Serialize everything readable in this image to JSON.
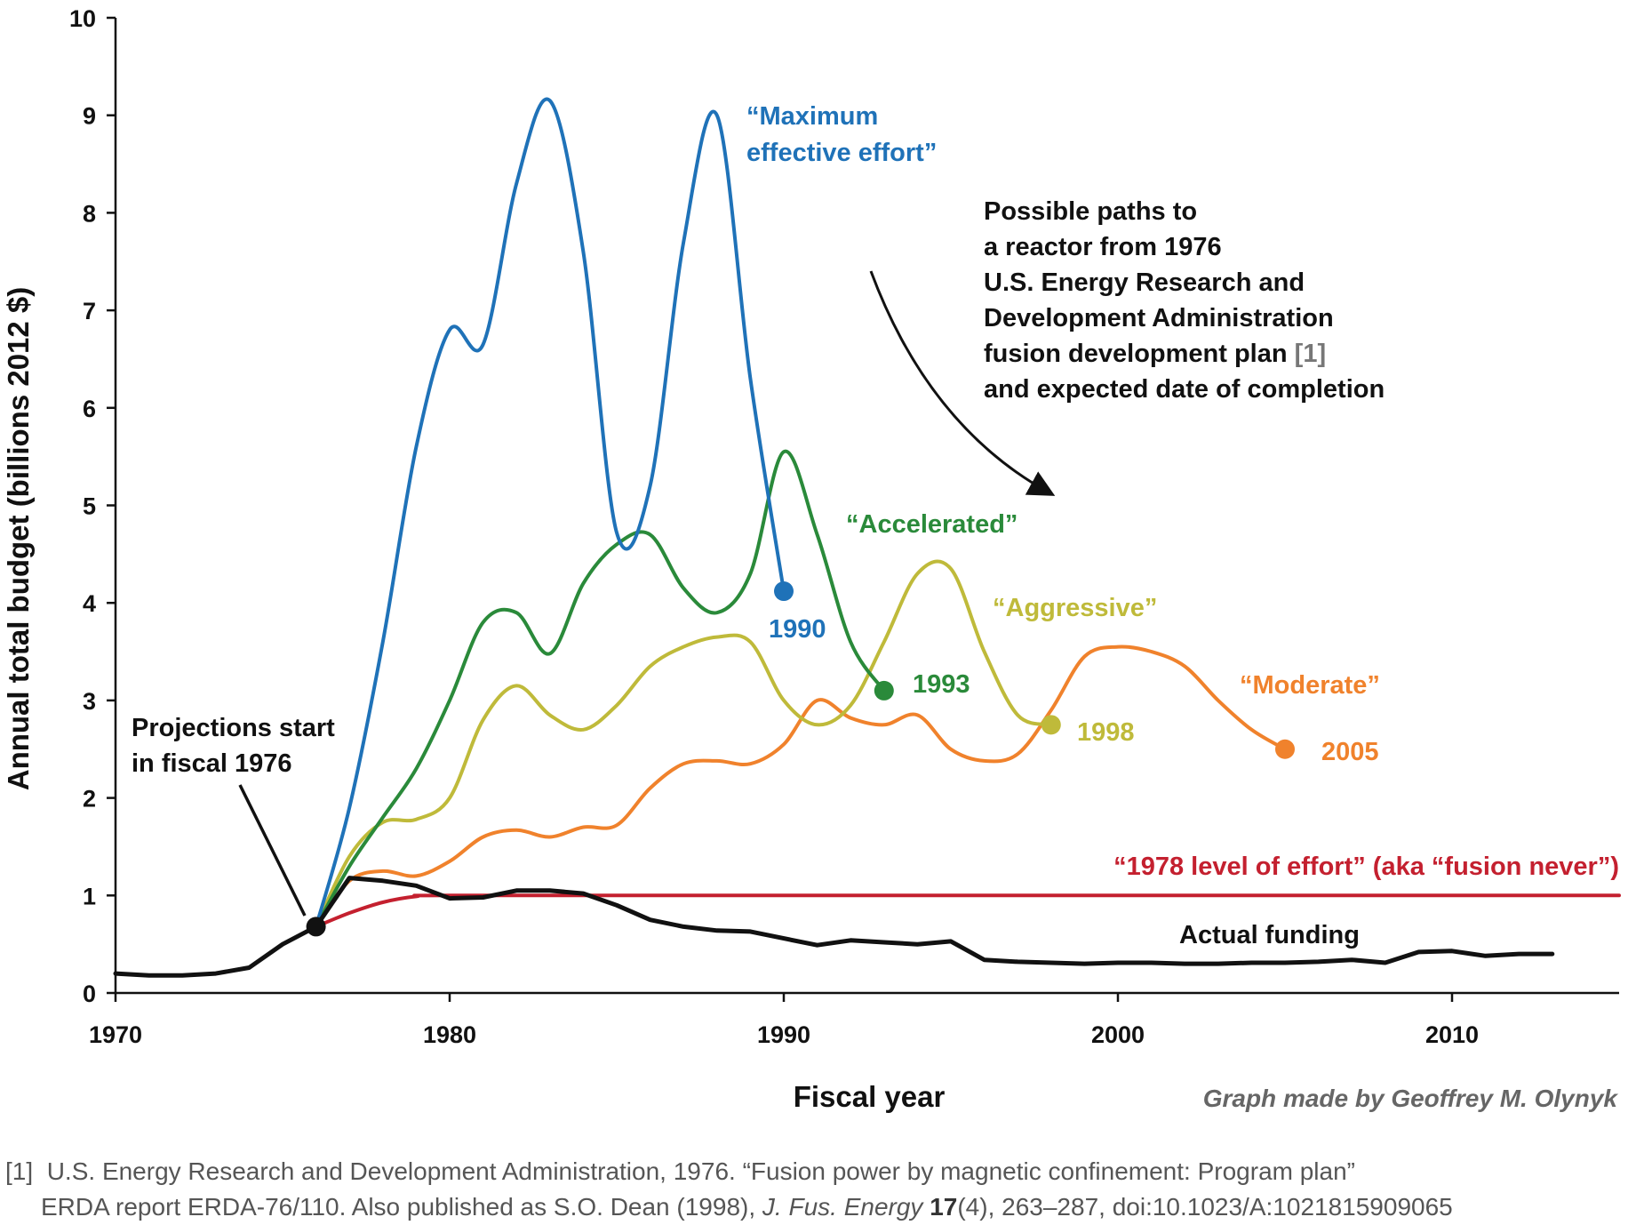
{
  "chart_data": {
    "type": "line",
    "xlabel": "Fiscal year",
    "ylabel": "Annual total budget (billions 2012 $)",
    "xlim": [
      1970,
      2015
    ],
    "ylim": [
      0,
      10
    ],
    "xticks": [
      1970,
      1980,
      1990,
      2000,
      2010
    ],
    "yticks": [
      0,
      1,
      2,
      3,
      4,
      5,
      6,
      7,
      8,
      9,
      10
    ],
    "grid": false,
    "legend": "none (series labelled directly on the chart)",
    "series": [
      {
        "name": "“Maximum effective effort”",
        "color": "#1f72b8",
        "end_label": "1990",
        "x": [
          1976,
          1977,
          1978,
          1979,
          1980,
          1981,
          1982,
          1983,
          1984,
          1985,
          1986,
          1987,
          1988,
          1989,
          1990
        ],
        "y": [
          0.68,
          1.9,
          3.6,
          5.6,
          6.8,
          6.65,
          8.3,
          9.15,
          7.6,
          4.72,
          5.2,
          7.7,
          9.0,
          6.3,
          4.12
        ]
      },
      {
        "name": "“Accelerated”",
        "color": "#2a8a3a",
        "end_label": "1993",
        "x": [
          1976,
          1977,
          1978,
          1979,
          1980,
          1981,
          1982,
          1983,
          1984,
          1985,
          1986,
          1987,
          1988,
          1989,
          1990,
          1991,
          1992,
          1993
        ],
        "y": [
          0.68,
          1.3,
          1.8,
          2.3,
          3.0,
          3.8,
          3.9,
          3.48,
          4.2,
          4.6,
          4.7,
          4.15,
          3.9,
          4.3,
          5.55,
          4.7,
          3.6,
          3.1
        ]
      },
      {
        "name": "“Aggressive”",
        "color": "#bfba3a",
        "end_label": "1998",
        "x": [
          1976,
          1977,
          1978,
          1979,
          1980,
          1981,
          1982,
          1983,
          1984,
          1985,
          1986,
          1987,
          1988,
          1989,
          1990,
          1991,
          1992,
          1993,
          1994,
          1995,
          1996,
          1997,
          1998
        ],
        "y": [
          0.68,
          1.4,
          1.75,
          1.78,
          2.0,
          2.8,
          3.15,
          2.85,
          2.7,
          2.95,
          3.35,
          3.55,
          3.65,
          3.6,
          3.0,
          2.75,
          2.95,
          3.6,
          4.3,
          4.35,
          3.5,
          2.85,
          2.75
        ]
      },
      {
        "name": "“Moderate”",
        "color": "#f0822c",
        "end_label": "2005",
        "x": [
          1976,
          1977,
          1978,
          1979,
          1980,
          1981,
          1982,
          1983,
          1984,
          1985,
          1986,
          1987,
          1988,
          1989,
          1990,
          1991,
          1992,
          1993,
          1994,
          1995,
          1996,
          1997,
          1998,
          1999,
          2000,
          2001,
          2002,
          2003,
          2004,
          2005
        ],
        "y": [
          0.68,
          1.15,
          1.25,
          1.2,
          1.35,
          1.6,
          1.67,
          1.6,
          1.7,
          1.72,
          2.1,
          2.35,
          2.38,
          2.35,
          2.55,
          3.0,
          2.82,
          2.75,
          2.85,
          2.5,
          2.38,
          2.45,
          2.9,
          3.45,
          3.55,
          3.5,
          3.35,
          3.0,
          2.7,
          2.5
        ]
      },
      {
        "name": "“1978 level of effort” (aka “fusion never”)",
        "color": "#c4202f",
        "x": [
          1976,
          1977,
          1978,
          1979,
          1980,
          1990,
          2000,
          2010,
          2015
        ],
        "y": [
          0.68,
          0.82,
          0.93,
          0.99,
          1.0,
          1.0,
          1.0,
          1.0,
          1.0
        ]
      },
      {
        "name": "Actual funding",
        "color": "#111111",
        "x": [
          1970,
          1971,
          1972,
          1973,
          1974,
          1975,
          1976,
          1977,
          1978,
          1979,
          1980,
          1981,
          1982,
          1983,
          1984,
          1985,
          1986,
          1987,
          1988,
          1989,
          1990,
          1991,
          1992,
          1993,
          1994,
          1995,
          1996,
          1997,
          1998,
          1999,
          2000,
          2001,
          2002,
          2003,
          2004,
          2005,
          2006,
          2007,
          2008,
          2009,
          2010,
          2011,
          2012,
          2013
        ],
        "y": [
          0.2,
          0.18,
          0.18,
          0.2,
          0.26,
          0.5,
          0.68,
          1.18,
          1.15,
          1.1,
          0.97,
          0.98,
          1.05,
          1.05,
          1.02,
          0.9,
          0.75,
          0.68,
          0.64,
          0.63,
          0.56,
          0.49,
          0.54,
          0.52,
          0.5,
          0.53,
          0.34,
          0.32,
          0.31,
          0.3,
          0.31,
          0.31,
          0.3,
          0.3,
          0.31,
          0.31,
          0.32,
          0.34,
          0.31,
          0.42,
          0.43,
          0.38,
          0.4,
          0.4
        ]
      }
    ],
    "start_point": {
      "x": 1976,
      "y": 0.68
    },
    "annotations": {
      "projections_start": [
        "Projections start",
        "in fiscal 1976"
      ],
      "possible_paths": [
        "Possible paths to",
        "a reactor from 1976",
        "U.S. Energy Research and",
        "Development Administration",
        "fusion development plan ",
        "and expected date of completion"
      ],
      "possible_paths_ref": "[1]",
      "max_label": [
        "“Maximum",
        "effective effort”"
      ]
    },
    "credit": "Graph made by Geoffrey M. Olynyk"
  },
  "reference": {
    "marker": "[1]",
    "line1": "U.S. Energy Research and Development Administration, 1976. “Fusion power by magnetic confinement: Program plan”",
    "line2_a": "ERDA report ERDA-76/110. Also published as S.O. Dean (1998), ",
    "journal": "J. Fus. Energy",
    "volume": "17",
    "line2_b": "(4), 263–287, doi:10.1023/A:1021815909065"
  }
}
